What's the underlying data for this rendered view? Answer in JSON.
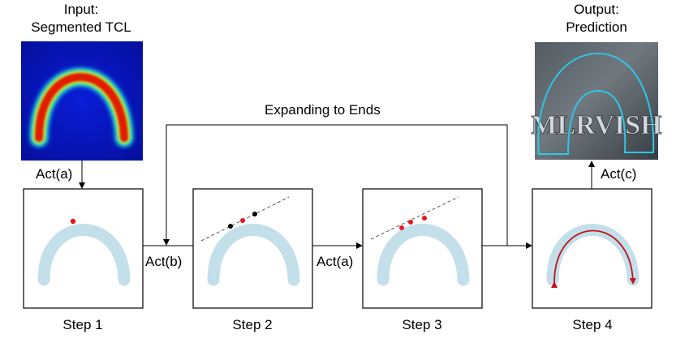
{
  "input": {
    "line1": "Input:",
    "line2": "Segmented TCL"
  },
  "output": {
    "line1": "Output:",
    "line2": "Prediction"
  },
  "loop_label": "Expanding to Ends",
  "actions": {
    "act_a": "Act(a)",
    "act_b": "Act(b)",
    "act_c": "Act(c)"
  },
  "steps": [
    "Step 1",
    "Step 2",
    "Step 3",
    "Step 4"
  ],
  "prediction_text": "MLRVISH",
  "colors": {
    "tcl": "#c3dfea",
    "point": "#e8161b",
    "trace": "#c3121a",
    "contour": "#2ec6e6",
    "line": "#000000"
  }
}
